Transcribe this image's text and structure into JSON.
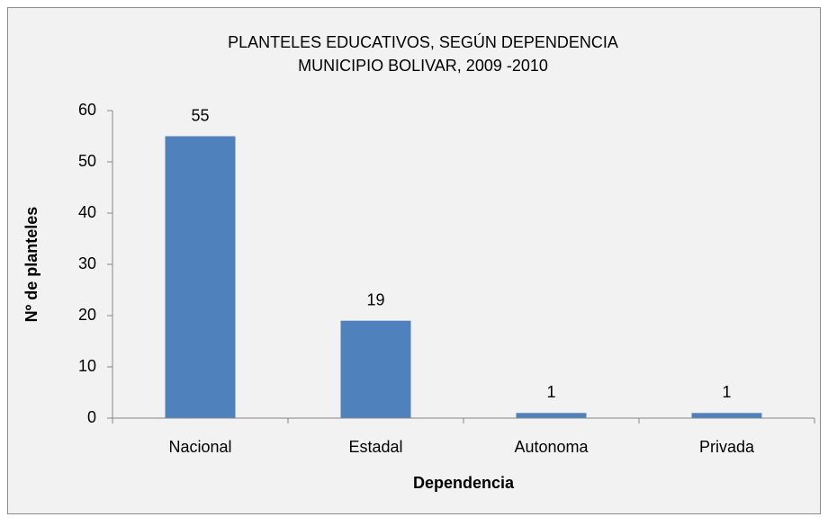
{
  "chart_data": {
    "type": "bar",
    "title": "PLANTELES EDUCATIVOS, SEGÚN DEPENDENCIA",
    "subtitle": "MUNICIPIO BOLIVAR, 2009 -2010",
    "x_label": "Dependencia",
    "y_label": "Nº de planteles",
    "categories": [
      "Nacional",
      "Estadal",
      "Autonoma",
      "Privada"
    ],
    "values": [
      55,
      19,
      1,
      1
    ],
    "color": "#4f81bd",
    "ylim": [
      0,
      60
    ],
    "yticks": [
      0,
      10,
      20,
      30,
      40,
      50,
      60
    ],
    "grid": false
  }
}
